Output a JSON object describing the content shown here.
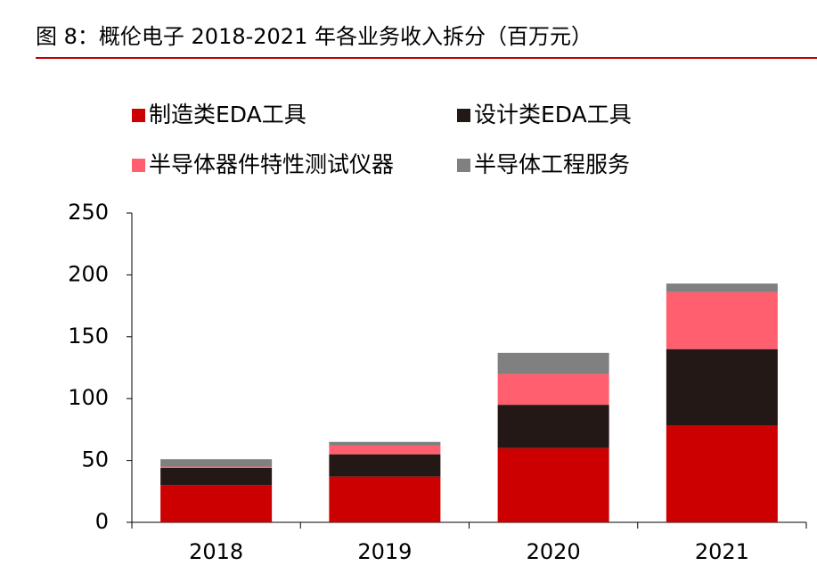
{
  "chart_data": {
    "type": "stacked_bar",
    "title": "图 8：概伦电子 2018-2021 年各业务收入拆分（百万元）",
    "categories": [
      "2018",
      "2019",
      "2020",
      "2021"
    ],
    "series": [
      {
        "name": "制造类EDA工具",
        "color": "#cc0000",
        "values": [
          30,
          37,
          60,
          78
        ]
      },
      {
        "name": "设计类EDA工具",
        "color": "#231815",
        "values": [
          14,
          18,
          35,
          62
        ]
      },
      {
        "name": "半导体器件特性测试仪器",
        "color": "#ff5f6e",
        "values": [
          1,
          7,
          25,
          46
        ]
      },
      {
        "name": "半导体工程服务",
        "color": "#808080",
        "values": [
          6,
          3,
          17,
          7
        ]
      }
    ],
    "ylim": [
      0,
      250
    ],
    "yticks": [
      0,
      50,
      100,
      150,
      200,
      250
    ],
    "grid": false,
    "legend": "top"
  }
}
